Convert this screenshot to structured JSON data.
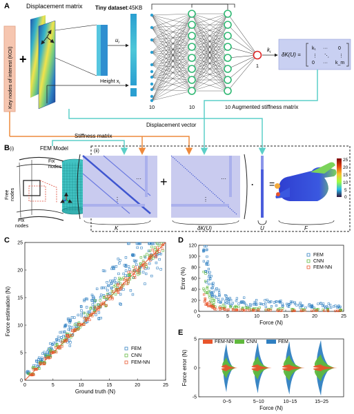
{
  "panels": {
    "a": {
      "letter": "A",
      "displacement_matrix": "Displacement matrix",
      "koi_label": "Key nodes of interest (KOI)",
      "tiny_dataset_bold": "Tiny dataset",
      "tiny_dataset_size": ":45KB",
      "u_label": "u",
      "u_sub": "i",
      "height_label": "Height x",
      "height_sub": "i",
      "k_label": "k",
      "k_sub": "i",
      "layer_counts": [
        "10",
        "10",
        "10",
        "1"
      ],
      "delta_k_lhs": "δK(U) =",
      "matrix_row1": [
        "k₁",
        "···",
        "0"
      ],
      "matrix_row2": [
        "⋮",
        "⋱",
        "⋮"
      ],
      "matrix_row3": [
        "0",
        "···",
        "k_m"
      ],
      "displacement_vector": "Displacement vector",
      "augmented_stiffness": "Augmented stiffness matrix",
      "plus": "+"
    },
    "b": {
      "letter": "B",
      "sub_i": "(i)",
      "sub_ii": "(ii)",
      "fem_model": "FEM Model",
      "stiffness_matrix": "Stiffness matrix",
      "fix_nodes_top": "Fix\nnodes",
      "fix_nodes_bottom": "Fix\nnodes",
      "free_nodes": "Free\nnodes",
      "label_K": "K",
      "label_dK": "δK(U)",
      "label_U": "U",
      "label_F": "F",
      "plus": "+",
      "dot": "·",
      "equals": "=",
      "colorbar_ticks": [
        "25",
        "20",
        "15",
        "10",
        "5",
        "0"
      ]
    },
    "c": {
      "letter": "C",
      "legend": [
        "FEM",
        "CNN",
        "FEM-NN"
      ]
    },
    "d": {
      "letter": "D",
      "legend": [
        "FEM",
        "CNN",
        "FEM-NN"
      ]
    },
    "e": {
      "letter": "E",
      "legend": [
        "FEM-NN",
        "CNN",
        "FEM"
      ]
    }
  },
  "colors": {
    "fem": "#2f7fc1",
    "cnn": "#5fb83c",
    "femnn": "#e8542a",
    "orange_arrow": "#ee8a3c",
    "teal_arrow": "#5ccfc8",
    "koi_box": "#f6c6b0",
    "matrix_box": "#c9d0f2",
    "green_node": "#2eb872",
    "lavender": "#c9cbef"
  },
  "chart_data": [
    {
      "type": "scatter",
      "panel": "C",
      "xlabel": "Ground truth (N)",
      "ylabel": "Force estimation (N)",
      "xlim": [
        0,
        25
      ],
      "ylim": [
        0,
        25
      ],
      "x_ticks": [
        "0",
        "5",
        "10",
        "15",
        "20",
        "25"
      ],
      "y_ticks": [
        "0",
        "5",
        "10",
        "15",
        "20",
        "25"
      ],
      "legend_position": "bottom-right",
      "series": [
        {
          "name": "FEM",
          "color": "#2f7fc1",
          "spread": 0.18,
          "x": [
            1,
            2,
            3,
            4,
            5,
            6,
            7,
            8,
            9,
            10,
            11,
            12,
            13,
            14,
            15,
            16,
            17,
            18,
            19,
            20,
            21,
            22,
            23,
            24,
            2.5,
            4.5,
            6.5,
            8.5,
            10.5,
            12.5,
            14.5,
            16.5,
            18.5,
            20.5,
            22.5,
            3.5,
            7.5,
            11.5,
            15.5,
            19.5
          ],
          "y": [
            1.3,
            2.6,
            3.9,
            4.6,
            6.4,
            6.8,
            8.9,
            7.0,
            10.5,
            12.3,
            10.8,
            14.6,
            13.2,
            16.8,
            15.1,
            19.2,
            16.4,
            21.3,
            18.2,
            23.1,
            20.4,
            24.0,
            22.0,
            23.8,
            3.2,
            5.8,
            8.4,
            10.4,
            12.9,
            14.8,
            17.9,
            19.4,
            22.2,
            22.6,
            24.6,
            4.6,
            9.8,
            13.6,
            18.6,
            21.9
          ]
        },
        {
          "name": "CNN",
          "color": "#5fb83c",
          "spread": 0.07,
          "x": [
            1,
            2,
            3,
            4,
            5,
            6,
            7,
            8,
            9,
            10,
            11,
            12,
            13,
            14,
            15,
            16,
            17,
            18,
            19,
            20,
            21,
            22,
            23,
            24
          ],
          "y": [
            1.1,
            2.2,
            3.2,
            4.3,
            5.3,
            6.2,
            7.4,
            8.3,
            9.5,
            10.3,
            11.5,
            12.4,
            13.6,
            14.4,
            15.6,
            16.3,
            17.6,
            18.4,
            19.6,
            20.4,
            21.5,
            22.3,
            23.4,
            24.2
          ]
        },
        {
          "name": "FEM-NN",
          "color": "#e8542a",
          "spread": 0.03,
          "x": [
            1,
            2,
            3,
            4,
            5,
            6,
            7,
            8,
            9,
            10,
            11,
            12,
            13,
            14,
            15,
            16,
            17,
            18,
            19,
            20,
            21,
            22,
            23,
            24
          ],
          "y": [
            1.0,
            2.0,
            3.0,
            4.1,
            5.0,
            6.0,
            7.1,
            8.0,
            9.0,
            10.1,
            11.0,
            12.0,
            13.1,
            14.0,
            15.0,
            16.1,
            17.0,
            18.0,
            19.1,
            20.0,
            21.0,
            22.1,
            23.0,
            24.0
          ]
        }
      ]
    },
    {
      "type": "scatter",
      "panel": "D",
      "xlabel": "Force (N)",
      "ylabel": "Error (%)",
      "xlim": [
        0,
        25
      ],
      "ylim": [
        0,
        120
      ],
      "x_ticks": [
        "0",
        "5",
        "10",
        "15",
        "20",
        "25"
      ],
      "y_ticks": [
        "0",
        "20",
        "40",
        "60",
        "80",
        "100",
        "120"
      ],
      "legend_position": "top-right",
      "series": [
        {
          "name": "FEM",
          "color": "#2f7fc1",
          "x": [
            1.0,
            1.2,
            1.4,
            1.6,
            1.8,
            2.0,
            2.2,
            2.5,
            3.0,
            3.5,
            4.0,
            4.5,
            5,
            6,
            7,
            8,
            9,
            10,
            11,
            12,
            13,
            14,
            15,
            16,
            17,
            18,
            19,
            20,
            21,
            22,
            23,
            24
          ],
          "y": [
            115,
            100,
            85,
            70,
            60,
            52,
            45,
            38,
            32,
            28,
            24,
            22,
            20,
            17,
            15,
            18,
            14,
            16,
            12,
            15,
            13,
            17,
            11,
            14,
            12,
            10,
            13,
            9,
            11,
            8,
            10,
            9
          ]
        },
        {
          "name": "CNN",
          "color": "#5fb83c",
          "x": [
            1.0,
            1.3,
            1.6,
            2.0,
            2.5,
            3,
            4,
            5,
            6,
            7,
            8,
            9,
            10,
            12,
            14,
            16,
            18,
            20,
            22,
            24
          ],
          "y": [
            58,
            45,
            35,
            25,
            18,
            14,
            10,
            8,
            7,
            6,
            6,
            5,
            5,
            4,
            4,
            3,
            3,
            3,
            3,
            2
          ]
        },
        {
          "name": "FEM-NN",
          "color": "#e8542a",
          "x": [
            1.0,
            1.3,
            1.6,
            2.0,
            2.5,
            3,
            4,
            5,
            6,
            7,
            8,
            9,
            10,
            12,
            14,
            16,
            18,
            20,
            22,
            24
          ],
          "y": [
            25,
            18,
            13,
            9,
            7,
            5,
            4,
            3,
            3,
            2,
            2,
            2,
            2,
            2,
            1,
            1,
            1,
            1,
            1,
            1
          ]
        }
      ]
    },
    {
      "type": "violin",
      "panel": "E",
      "xlabel": "Force (N)",
      "ylabel": "Force error (N)",
      "ylim": [
        -5,
        5
      ],
      "y_ticks": [
        "5",
        "0",
        "-5"
      ],
      "categories": [
        "0~5",
        "5~10",
        "10~15",
        "15~25"
      ],
      "legend_position": "top-left",
      "series": [
        {
          "name": "FEM-NN",
          "color": "#e8542a",
          "width": [
            0.6,
            0.75,
            0.85,
            0.9
          ],
          "height": [
            0.6,
            0.6,
            0.6,
            0.6
          ]
        },
        {
          "name": "CNN",
          "color": "#5fb83c",
          "width": [
            0.5,
            0.6,
            0.7,
            0.75
          ],
          "height": [
            1.8,
            2.0,
            2.2,
            2.3
          ]
        },
        {
          "name": "FEM",
          "color": "#2f7fc1",
          "width": [
            0.35,
            0.4,
            0.45,
            0.5
          ],
          "height": [
            4.2,
            4.4,
            4.6,
            4.8
          ]
        }
      ]
    }
  ]
}
